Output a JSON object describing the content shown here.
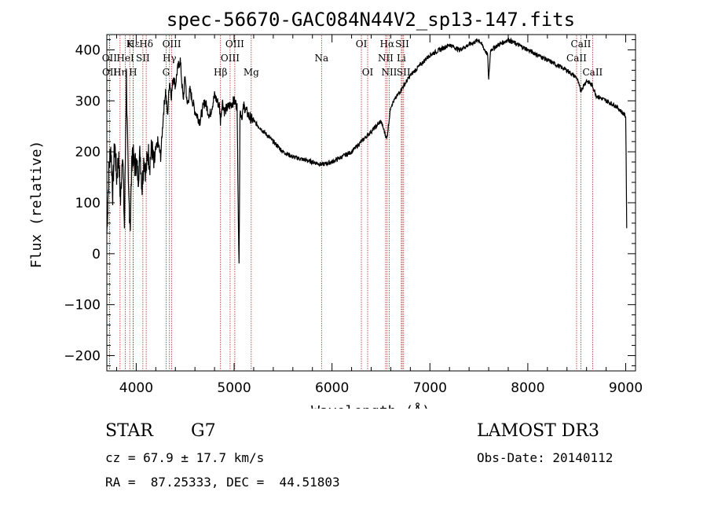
{
  "chart_data": {
    "type": "line",
    "title": "spec-56670-GAC084N44V2_sp13-147.fits",
    "xlabel": "Wavelength (Å)",
    "ylabel": "Flux (relative)",
    "xlim": [
      3700,
      9100
    ],
    "ylim": [
      -230,
      430
    ],
    "xticks": [
      4000,
      5000,
      6000,
      7000,
      8000,
      9000
    ],
    "yticks": [
      -200,
      -100,
      0,
      100,
      200,
      300,
      400
    ],
    "grid": false,
    "series": [
      {
        "name": "flux",
        "x": [
          3700,
          3720,
          3740,
          3760,
          3780,
          3800,
          3820,
          3840,
          3860,
          3880,
          3900,
          3920,
          3940,
          3960,
          3980,
          4000,
          4020,
          4040,
          4060,
          4080,
          4100,
          4120,
          4140,
          4160,
          4180,
          4200,
          4220,
          4250,
          4280,
          4300,
          4320,
          4340,
          4360,
          4380,
          4400,
          4420,
          4450,
          4480,
          4500,
          4520,
          4550,
          4600,
          4650,
          4700,
          4750,
          4800,
          4850,
          4860,
          4880,
          4900,
          4950,
          5000,
          5030,
          5050,
          5060,
          5080,
          5100,
          5150,
          5200,
          5300,
          5400,
          5500,
          5600,
          5700,
          5800,
          5900,
          6000,
          6100,
          6200,
          6300,
          6400,
          6500,
          6560,
          6600,
          6700,
          6800,
          6900,
          7000,
          7100,
          7200,
          7300,
          7400,
          7500,
          7590,
          7600,
          7620,
          7700,
          7800,
          7900,
          8000,
          8100,
          8200,
          8300,
          8400,
          8500,
          8540,
          8600,
          8660,
          8700,
          8800,
          8900,
          8950,
          9000,
          9010
        ],
        "y": [
          40,
          160,
          210,
          120,
          220,
          150,
          190,
          100,
          210,
          50,
          350,
          120,
          60,
          210,
          170,
          180,
          150,
          200,
          130,
          190,
          160,
          200,
          180,
          210,
          170,
          200,
          220,
          190,
          280,
          320,
          270,
          340,
          310,
          350,
          330,
          360,
          380,
          300,
          350,
          290,
          320,
          280,
          260,
          300,
          270,
          310,
          290,
          260,
          300,
          280,
          290,
          300,
          290,
          -30,
          280,
          270,
          290,
          270,
          260,
          240,
          220,
          200,
          190,
          185,
          180,
          175,
          180,
          190,
          200,
          220,
          240,
          260,
          225,
          290,
          320,
          350,
          370,
          390,
          400,
          410,
          400,
          410,
          420,
          390,
          340,
          400,
          410,
          420,
          410,
          400,
          390,
          380,
          370,
          360,
          345,
          320,
          340,
          330,
          310,
          300,
          290,
          280,
          270,
          50
        ]
      }
    ],
    "line_markers": [
      {
        "label": "Hε",
        "x": 3970,
        "row": 0
      },
      {
        "label": "OII",
        "x": 3727,
        "row": 1
      },
      {
        "label": "OII",
        "x": 3729,
        "row": 2
      },
      {
        "label": "HeI",
        "x": 3889,
        "row": 1
      },
      {
        "label": "Hη",
        "x": 3835,
        "row": 2
      },
      {
        "label": "K",
        "x": 3934,
        "row": 0
      },
      {
        "label": "H",
        "x": 3968,
        "row": 2
      },
      {
        "label": "Hδ",
        "x": 4102,
        "row": 0
      },
      {
        "label": "SII",
        "x": 4068,
        "row": 1
      },
      {
        "label": "OIII",
        "x": 4363,
        "row": 0
      },
      {
        "label": "Hγ",
        "x": 4340,
        "row": 1
      },
      {
        "label": "G",
        "x": 4305,
        "row": 2
      },
      {
        "label": "OIII",
        "x": 5007,
        "row": 0
      },
      {
        "label": "OIII",
        "x": 4959,
        "row": 1
      },
      {
        "label": "Hβ",
        "x": 4861,
        "row": 2
      },
      {
        "label": "Mg",
        "x": 5175,
        "row": 2
      },
      {
        "label": "Na",
        "x": 5893,
        "row": 1
      },
      {
        "label": "OI",
        "x": 6300,
        "row": 0
      },
      {
        "label": "OI",
        "x": 6364,
        "row": 2
      },
      {
        "label": "Hα",
        "x": 6563,
        "row": 0
      },
      {
        "label": "NII",
        "x": 6548,
        "row": 1
      },
      {
        "label": "NII",
        "x": 6584,
        "row": 2
      },
      {
        "label": "SII",
        "x": 6717,
        "row": 0
      },
      {
        "label": "Li",
        "x": 6708,
        "row": 1
      },
      {
        "label": "SII",
        "x": 6731,
        "row": 2
      },
      {
        "label": "CaII",
        "x": 8542,
        "row": 0
      },
      {
        "label": "CaII",
        "x": 8498,
        "row": 1
      },
      {
        "label": "CaII",
        "x": 8662,
        "row": 2
      }
    ]
  },
  "info": {
    "class_label": "STAR",
    "subclass_label": "G7",
    "survey": "LAMOST DR3",
    "redshift": "cz = 67.9 ± 17.7 km/s",
    "obs_date": "Obs-Date: 20140112",
    "coords": "RA =  87.25333, DEC =  44.51803"
  },
  "colors": {
    "axis": "#000000",
    "spectrum": "#000000",
    "marker": "#b22222"
  }
}
